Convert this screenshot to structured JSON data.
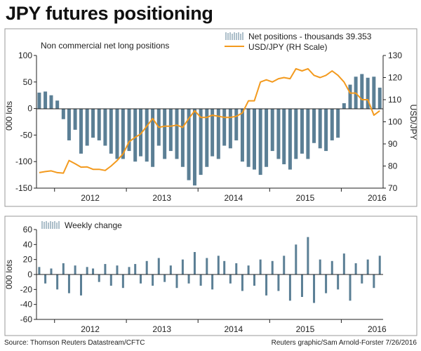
{
  "title": "JPY futures positioning",
  "source": "Source: Thomson Reuters Datastream/CFTC",
  "credit": "Reuters graphic/Sam Arnold-Forster 7/26/2016",
  "colors": {
    "net_bars": "#5b7f95",
    "usdjpy_line": "#f39a1e",
    "axis": "#222222",
    "frame": "#999999"
  },
  "chart_data": [
    {
      "type": "bar+line",
      "subtitle": "Non commercial net long positions",
      "ylabel_left": "000 lots",
      "ylabel_right": "USD/JPY",
      "ylim_left": [
        -150,
        100
      ],
      "ylim_right": [
        70,
        130
      ],
      "yticks_left": [
        "100",
        "50",
        "0",
        "-50",
        "-100",
        "-150"
      ],
      "yticks_right": [
        "130",
        "120",
        "110",
        "100",
        "90",
        "80",
        "70"
      ],
      "xticks": [
        "2012",
        "2013",
        "2014",
        "2015",
        "2016"
      ],
      "legend": [
        {
          "name": "Net positions - thousands",
          "last_value": "39.353"
        },
        {
          "name": "USD/JPY (RH Scale)"
        }
      ],
      "series": [
        {
          "name": "Net positions - thousands",
          "axis": "left",
          "x": [
            "2011-10",
            "2011-11",
            "2011-12",
            "2012-01",
            "2012-02",
            "2012-03",
            "2012-04",
            "2012-05",
            "2012-06",
            "2012-07",
            "2012-08",
            "2012-09",
            "2012-10",
            "2012-11",
            "2012-12",
            "2013-01",
            "2013-02",
            "2013-03",
            "2013-04",
            "2013-05",
            "2013-06",
            "2013-07",
            "2013-08",
            "2013-09",
            "2013-10",
            "2013-11",
            "2013-12",
            "2014-01",
            "2014-02",
            "2014-03",
            "2014-04",
            "2014-05",
            "2014-06",
            "2014-07",
            "2014-08",
            "2014-09",
            "2014-10",
            "2014-11",
            "2014-12",
            "2015-01",
            "2015-02",
            "2015-03",
            "2015-04",
            "2015-05",
            "2015-06",
            "2015-07",
            "2015-08",
            "2015-09",
            "2015-10",
            "2015-11",
            "2015-12",
            "2016-01",
            "2016-02",
            "2016-03",
            "2016-04",
            "2016-05",
            "2016-06",
            "2016-07"
          ],
          "values": [
            30,
            32,
            25,
            15,
            -20,
            -60,
            -40,
            -85,
            -70,
            -55,
            -60,
            -70,
            -85,
            -95,
            -95,
            -80,
            -100,
            -90,
            -100,
            -110,
            -70,
            -95,
            -80,
            -95,
            -110,
            -135,
            -145,
            -125,
            -110,
            -90,
            -95,
            -70,
            -75,
            -60,
            -100,
            -110,
            -115,
            -125,
            -110,
            -80,
            -95,
            -105,
            -115,
            -95,
            -85,
            -95,
            -65,
            -75,
            -80,
            -60,
            -55,
            10,
            45,
            60,
            65,
            58,
            60,
            39.353
          ]
        },
        {
          "name": "USD/JPY (RH Scale)",
          "axis": "right",
          "x": [
            "2011-10",
            "2011-11",
            "2011-12",
            "2012-01",
            "2012-02",
            "2012-03",
            "2012-04",
            "2012-05",
            "2012-06",
            "2012-07",
            "2012-08",
            "2012-09",
            "2012-10",
            "2012-11",
            "2012-12",
            "2013-01",
            "2013-02",
            "2013-03",
            "2013-04",
            "2013-05",
            "2013-06",
            "2013-07",
            "2013-08",
            "2013-09",
            "2013-10",
            "2013-11",
            "2013-12",
            "2014-01",
            "2014-02",
            "2014-03",
            "2014-04",
            "2014-05",
            "2014-06",
            "2014-07",
            "2014-08",
            "2014-09",
            "2014-10",
            "2014-11",
            "2014-12",
            "2015-01",
            "2015-02",
            "2015-03",
            "2015-04",
            "2015-05",
            "2015-06",
            "2015-07",
            "2015-08",
            "2015-09",
            "2015-10",
            "2015-11",
            "2015-12",
            "2016-01",
            "2016-02",
            "2016-03",
            "2016-04",
            "2016-05",
            "2016-06",
            "2016-07"
          ],
          "values": [
            77,
            77.5,
            77.8,
            77,
            76.8,
            82.5,
            81,
            79.5,
            79.6,
            78.5,
            78.5,
            78,
            80,
            82.5,
            85.5,
            91,
            93,
            94.5,
            98,
            101.5,
            97.5,
            98,
            98,
            98.5,
            97.5,
            101.5,
            105,
            102,
            102,
            103,
            102.5,
            102,
            102,
            102.5,
            104,
            109.5,
            109.5,
            118,
            119,
            118,
            119.5,
            120,
            119.5,
            124,
            123,
            124,
            121,
            120,
            121,
            123,
            121,
            118,
            113,
            113,
            110,
            110,
            103,
            105
          ]
        }
      ]
    },
    {
      "type": "bar",
      "ylabel": "000 lots",
      "ylim": [
        -60,
        60
      ],
      "yticks": [
        "60",
        "40",
        "20",
        "0",
        "-20",
        "-40",
        "-60"
      ],
      "xticks": [
        "2012",
        "2013",
        "2014",
        "2015",
        "2016"
      ],
      "legend": [
        {
          "name": "Weekly change"
        }
      ],
      "series": [
        {
          "name": "Weekly change",
          "x": [
            "2011-10",
            "2011-11",
            "2011-12",
            "2012-01",
            "2012-02",
            "2012-03",
            "2012-04",
            "2012-05",
            "2012-06",
            "2012-07",
            "2012-08",
            "2012-09",
            "2012-10",
            "2012-11",
            "2012-12",
            "2013-01",
            "2013-02",
            "2013-03",
            "2013-04",
            "2013-05",
            "2013-06",
            "2013-07",
            "2013-08",
            "2013-09",
            "2013-10",
            "2013-11",
            "2013-12",
            "2014-01",
            "2014-02",
            "2014-03",
            "2014-04",
            "2014-05",
            "2014-06",
            "2014-07",
            "2014-08",
            "2014-09",
            "2014-10",
            "2014-11",
            "2014-12",
            "2015-01",
            "2015-02",
            "2015-03",
            "2015-04",
            "2015-05",
            "2015-06",
            "2015-07",
            "2015-08",
            "2015-09",
            "2015-10",
            "2015-11",
            "2015-12",
            "2016-01",
            "2016-02",
            "2016-03",
            "2016-04",
            "2016-05",
            "2016-06",
            "2016-07"
          ],
          "values": [
            10,
            -12,
            8,
            -20,
            15,
            -25,
            12,
            -28,
            10,
            8,
            -10,
            14,
            -15,
            12,
            -18,
            10,
            14,
            -12,
            18,
            -15,
            22,
            -10,
            12,
            -18,
            20,
            -12,
            30,
            -15,
            22,
            -20,
            25,
            18,
            -12,
            15,
            -22,
            12,
            -15,
            20,
            -28,
            18,
            -22,
            25,
            -35,
            40,
            -30,
            50,
            -38,
            20,
            -25,
            18,
            -20,
            28,
            -35,
            15,
            -12,
            20,
            -18,
            25
          ]
        }
      ]
    }
  ]
}
